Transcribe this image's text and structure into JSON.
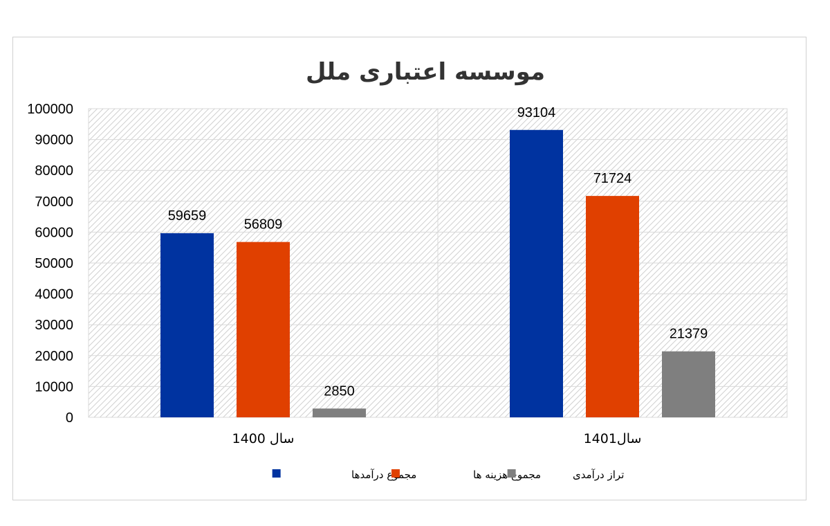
{
  "chart_data": {
    "type": "bar",
    "title": "موسسه اعتباری ملل",
    "categories": [
      "سال 1400",
      "سال1401"
    ],
    "series": [
      {
        "name": "مجموع درآمدها",
        "color": "#0033a0",
        "values": [
          59659,
          93104
        ]
      },
      {
        "name": "مجموع هزینه ها",
        "color": "#e04000",
        "values": [
          56809,
          71724
        ]
      },
      {
        "name": "تراز درآمدی",
        "color": "#7f7f7f",
        "values": [
          2850,
          21379
        ]
      }
    ],
    "ylim": [
      0,
      100000
    ],
    "yticks": [
      "100000",
      "90000",
      "80000",
      "70000",
      "60000",
      "50000",
      "40000",
      "30000",
      "20000",
      "10000",
      "0"
    ],
    "xlabel": "",
    "ylabel": "",
    "grid": true,
    "legend_position": "bottom"
  }
}
